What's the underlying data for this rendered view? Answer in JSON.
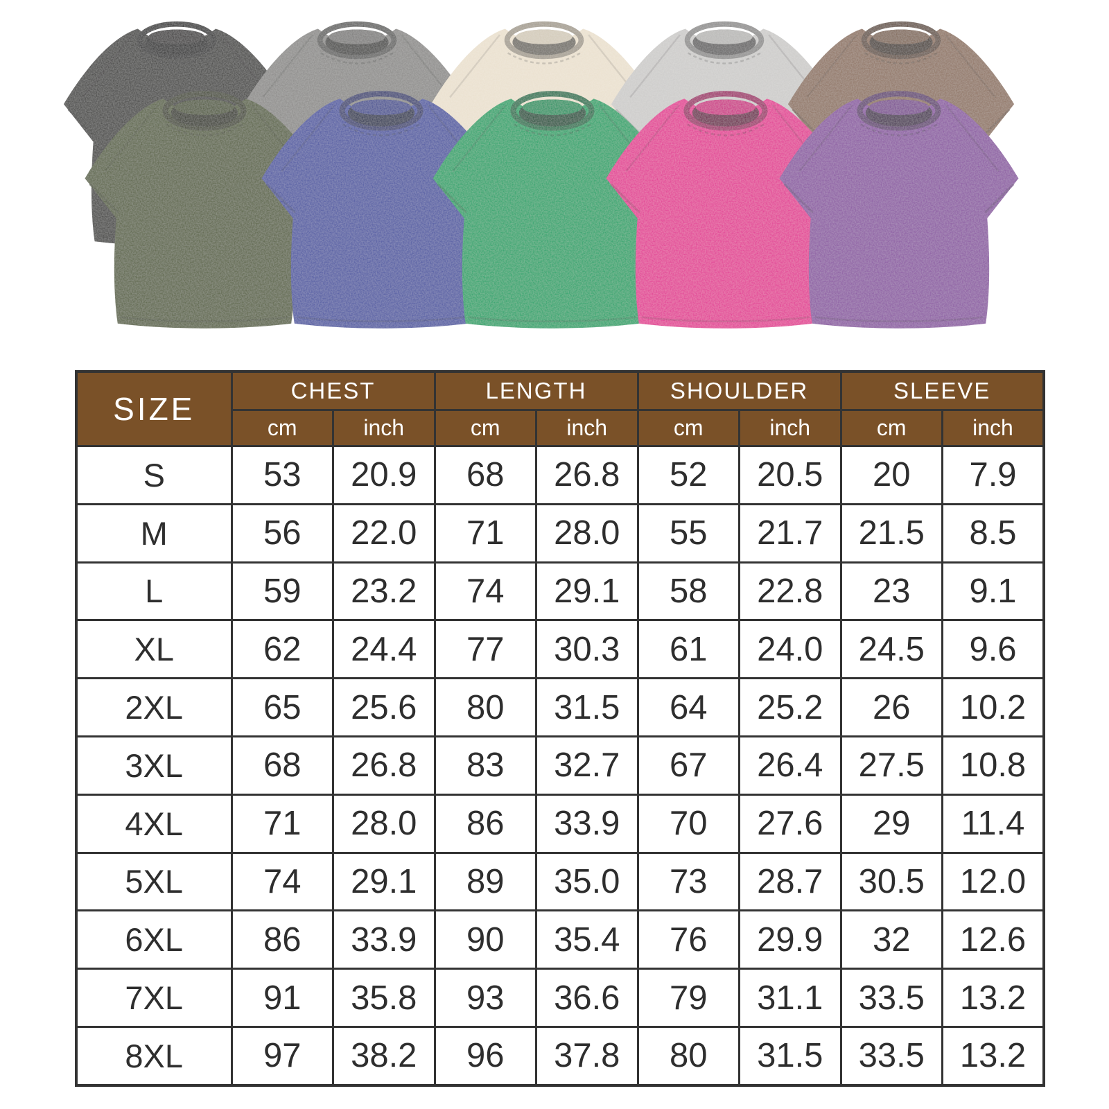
{
  "product_gallery": {
    "back_row": [
      {
        "name": "washed-black",
        "color": "#3e3c3b"
      },
      {
        "name": "washed-gray",
        "color": "#8b8a88"
      },
      {
        "name": "washed-cream",
        "color": "#eae0ce"
      },
      {
        "name": "washed-light-gray",
        "color": "#cccbc9"
      },
      {
        "name": "washed-brown",
        "color": "#8e7260"
      }
    ],
    "front_row": [
      {
        "name": "washed-army-green",
        "color": "#57603f"
      },
      {
        "name": "washed-blue",
        "color": "#4b55a1"
      },
      {
        "name": "washed-green",
        "color": "#19a268"
      },
      {
        "name": "washed-rose",
        "color": "#e23193"
      },
      {
        "name": "washed-purple",
        "color": "#8a57a1"
      }
    ]
  },
  "size_chart": {
    "size_header": "SIZE",
    "groups": [
      "CHEST",
      "LENGTH",
      "SHOULDER",
      "SLEEVE"
    ],
    "units": [
      "cm",
      "inch"
    ],
    "colors": {
      "header_bg": "#7a5128",
      "header_text": "#ffffff",
      "grid": "#333333",
      "body_text": "#2e2e2e"
    },
    "rows": [
      {
        "size": "S",
        "values": [
          "53",
          "20.9",
          "68",
          "26.8",
          "52",
          "20.5",
          "20",
          "7.9"
        ]
      },
      {
        "size": "M",
        "values": [
          "56",
          "22.0",
          "71",
          "28.0",
          "55",
          "21.7",
          "21.5",
          "8.5"
        ]
      },
      {
        "size": "L",
        "values": [
          "59",
          "23.2",
          "74",
          "29.1",
          "58",
          "22.8",
          "23",
          "9.1"
        ]
      },
      {
        "size": "XL",
        "values": [
          "62",
          "24.4",
          "77",
          "30.3",
          "61",
          "24.0",
          "24.5",
          "9.6"
        ]
      },
      {
        "size": "2XL",
        "values": [
          "65",
          "25.6",
          "80",
          "31.5",
          "64",
          "25.2",
          "26",
          "10.2"
        ]
      },
      {
        "size": "3XL",
        "values": [
          "68",
          "26.8",
          "83",
          "32.7",
          "67",
          "26.4",
          "27.5",
          "10.8"
        ]
      },
      {
        "size": "4XL",
        "values": [
          "71",
          "28.0",
          "86",
          "33.9",
          "70",
          "27.6",
          "29",
          "11.4"
        ]
      },
      {
        "size": "5XL",
        "values": [
          "74",
          "29.1",
          "89",
          "35.0",
          "73",
          "28.7",
          "30.5",
          "12.0"
        ]
      },
      {
        "size": "6XL",
        "values": [
          "86",
          "33.9",
          "90",
          "35.4",
          "76",
          "29.9",
          "32",
          "12.6"
        ]
      },
      {
        "size": "7XL",
        "values": [
          "91",
          "35.8",
          "93",
          "36.6",
          "79",
          "31.1",
          "33.5",
          "13.2"
        ]
      },
      {
        "size": "8XL",
        "values": [
          "97",
          "38.2",
          "96",
          "37.8",
          "80",
          "31.5",
          "33.5",
          "13.2"
        ]
      }
    ]
  },
  "chart_data": {
    "type": "table",
    "columns": [
      "SIZE",
      "CHEST cm",
      "CHEST inch",
      "LENGTH cm",
      "LENGTH inch",
      "SHOULDER cm",
      "SHOULDER inch",
      "SLEEVE cm",
      "SLEEVE inch"
    ],
    "rows": [
      [
        "S",
        53,
        20.9,
        68,
        26.8,
        52,
        20.5,
        20,
        7.9
      ],
      [
        "M",
        56,
        22.0,
        71,
        28.0,
        55,
        21.7,
        21.5,
        8.5
      ],
      [
        "L",
        59,
        23.2,
        74,
        29.1,
        58,
        22.8,
        23,
        9.1
      ],
      [
        "XL",
        62,
        24.4,
        77,
        30.3,
        61,
        24.0,
        24.5,
        9.6
      ],
      [
        "2XL",
        65,
        25.6,
        80,
        31.5,
        64,
        25.2,
        26,
        10.2
      ],
      [
        "3XL",
        68,
        26.8,
        83,
        32.7,
        67,
        26.4,
        27.5,
        10.8
      ],
      [
        "4XL",
        71,
        28.0,
        86,
        33.9,
        70,
        27.6,
        29,
        11.4
      ],
      [
        "5XL",
        74,
        29.1,
        89,
        35.0,
        73,
        28.7,
        30.5,
        12.0
      ],
      [
        "6XL",
        86,
        33.9,
        90,
        35.4,
        76,
        29.9,
        32,
        12.6
      ],
      [
        "7XL",
        91,
        35.8,
        93,
        36.6,
        79,
        31.1,
        33.5,
        13.2
      ],
      [
        "8XL",
        97,
        38.2,
        96,
        37.8,
        80,
        31.5,
        33.5,
        13.2
      ]
    ]
  }
}
